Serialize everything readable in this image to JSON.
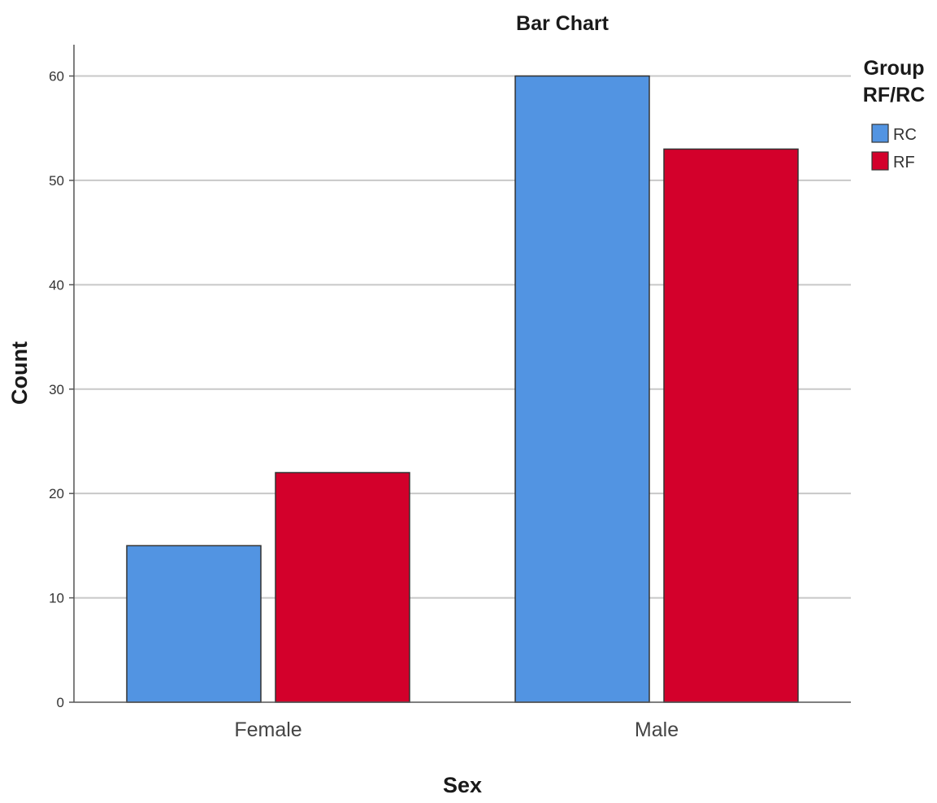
{
  "chart_data": {
    "type": "bar",
    "title": "Bar Chart",
    "xlabel": "Sex",
    "ylabel": "Count",
    "categories": [
      "Female",
      "Male"
    ],
    "series": [
      {
        "name": "RC",
        "values": [
          15,
          60
        ],
        "color": "#5294e2"
      },
      {
        "name": "RF",
        "values": [
          22,
          53
        ],
        "color": "#d3002b"
      }
    ],
    "ylim": [
      0,
      63
    ],
    "yticks": [
      0,
      10,
      20,
      30,
      40,
      50,
      60
    ],
    "grid": true,
    "legend": {
      "title_lines": [
        "Group",
        "RF/RC"
      ],
      "position": "top-right"
    }
  }
}
